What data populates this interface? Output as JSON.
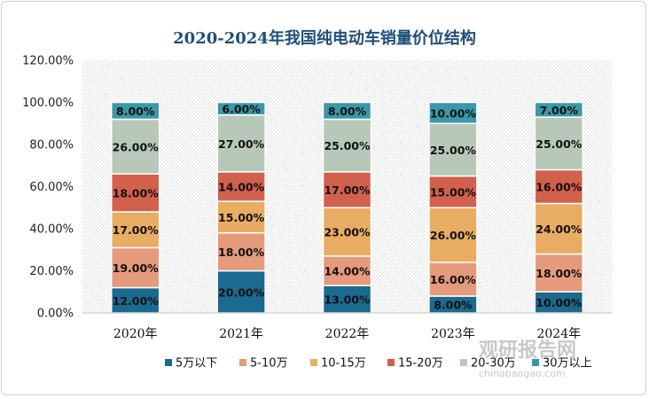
{
  "chart_data": {
    "type": "bar",
    "stacked": true,
    "title": "2020-2024年我国纯电动车销量价位结构",
    "categories": [
      "2020年",
      "2021年",
      "2022年",
      "2023年",
      "2024年"
    ],
    "ylim": [
      0,
      120
    ],
    "yticks": [
      "0.00%",
      "20.00%",
      "40.00%",
      "60.00%",
      "80.00%",
      "100.00%",
      "120.00%"
    ],
    "ytick_values": [
      0,
      20,
      40,
      60,
      80,
      100,
      120
    ],
    "grid": false,
    "legend_position": "bottom",
    "series": [
      {
        "name": "5万以下",
        "color": "#1b6a8f",
        "values": [
          12,
          20,
          13,
          8,
          10
        ],
        "labels": [
          "12.00%",
          "20.00%",
          "13.00%",
          "8.00%",
          "10.00%"
        ]
      },
      {
        "name": "5-10万",
        "color": "#e59a7b",
        "values": [
          19,
          18,
          14,
          16,
          18
        ],
        "labels": [
          "19.00%",
          "18.00%",
          "14.00%",
          "16.00%",
          "18.00%"
        ]
      },
      {
        "name": "10-15万",
        "color": "#e8ac63",
        "values": [
          17,
          15,
          23,
          26,
          24
        ],
        "labels": [
          "17.00%",
          "15.00%",
          "23.00%",
          "26.00%",
          "24.00%"
        ]
      },
      {
        "name": "15-20万",
        "color": "#d1604d",
        "values": [
          18,
          14,
          17,
          15,
          16
        ],
        "labels": [
          "18.00%",
          "14.00%",
          "17.00%",
          "15.00%",
          "16.00%"
        ]
      },
      {
        "name": "20-30万",
        "color": "#b8c8b8",
        "values": [
          26,
          27,
          25,
          25,
          25
        ],
        "labels": [
          "26.00%",
          "27.00%",
          "25.00%",
          "25.00%",
          "25.00%"
        ]
      },
      {
        "name": "30万以上",
        "color": "#3a98a8",
        "values": [
          8,
          6,
          8,
          10,
          7
        ],
        "labels": [
          "8.00%",
          "6.00%",
          "8.00%",
          "10.00%",
          "7.00%"
        ]
      }
    ]
  },
  "watermark": {
    "name": "观研报告网",
    "url": "chinabaogao.com"
  }
}
